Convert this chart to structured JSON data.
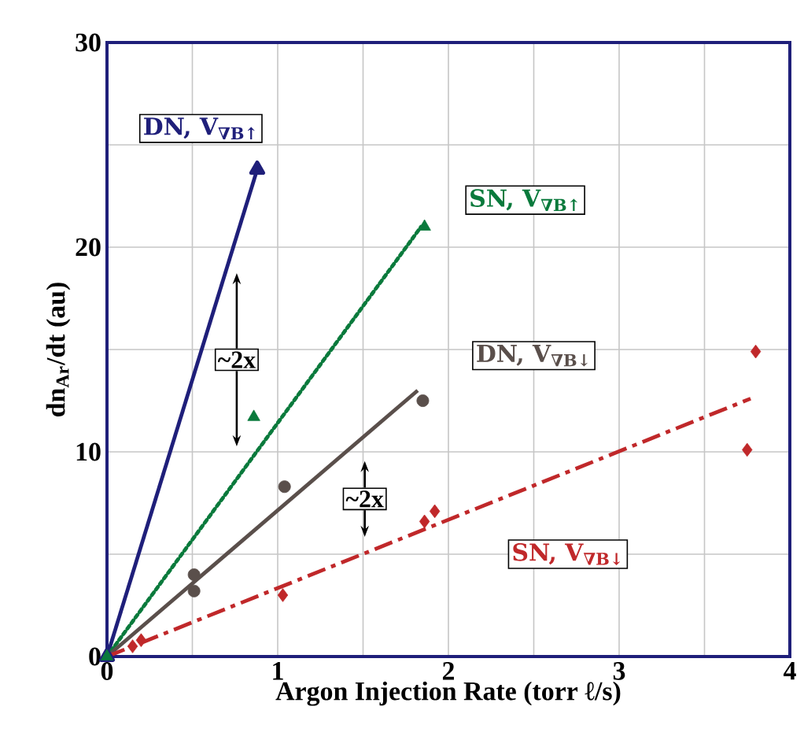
{
  "chart_data": {
    "type": "scatter",
    "xlabel": "Argon Injection Rate (torr ℓ/s)",
    "ylabel": "dn$_{Ar}$/dt (au)",
    "xlim": [
      0,
      4
    ],
    "ylim": [
      0,
      30
    ],
    "xticks": [
      0,
      {
        "value": 0.5,
        "label": null
      },
      1,
      {
        "value": 1.5,
        "label": null
      },
      2,
      {
        "value": 2.5,
        "label": null
      },
      3,
      {
        "value": 3.5,
        "label": null
      },
      4
    ],
    "yticks": [
      0,
      {
        "value": 5,
        "label": null
      },
      10,
      {
        "value": 15,
        "label": null
      },
      20,
      {
        "value": 25,
        "label": null
      },
      30
    ],
    "grid": true,
    "series": [
      {
        "name": "DN, V$_{∇B↑}$",
        "type": "line",
        "color": "#1f1f7a",
        "marker": "triangle",
        "line_style": "solid",
        "x": [
          0,
          0.88
        ],
        "values": [
          0,
          23.8
        ]
      },
      {
        "name": "SN, V$_{∇B↑}$",
        "color": "#0a7a3c",
        "marker": "triangle",
        "x": [
          0,
          0.86,
          1.86
        ],
        "values": [
          0,
          11.7,
          21.0
        ]
      },
      {
        "type": "line",
        "color": "#0a7a3c",
        "marker": "none",
        "line_style": "dotted",
        "x": [
          0,
          1.84
        ],
        "values": [
          0,
          21.0
        ]
      },
      {
        "name": "DN, V$_{∇B↓}$",
        "color": "#5a4f4b",
        "marker": "circle",
        "x": [
          0.51,
          0.51,
          1.04,
          1.85
        ],
        "values": [
          4.0,
          3.2,
          8.3,
          12.5
        ]
      },
      {
        "type": "line",
        "color": "#5a4f4b",
        "marker": "none",
        "line_style": "solid",
        "x": [
          0,
          1.82
        ],
        "values": [
          0,
          13.0
        ]
      },
      {
        "name": "SN, V$_{∇B↓}$",
        "color": "#c0282a",
        "marker": "diamond",
        "x": [
          0.15,
          0.2,
          1.03,
          1.86,
          1.92,
          3.75,
          3.8
        ],
        "values": [
          0.5,
          0.8,
          3.0,
          6.6,
          7.1,
          10.1,
          14.9
        ]
      },
      {
        "type": "line",
        "color": "#c0282a",
        "marker": "none",
        "line_style": "dashed",
        "x": [
          0,
          3.77
        ],
        "values": [
          0,
          12.6
        ]
      }
    ],
    "annotations": [
      {
        "text": "~2x",
        "x": 0.76,
        "y": 14.5
      },
      {
        "text": "~2x",
        "x": 1.51,
        "y": 7.7
      }
    ]
  }
}
